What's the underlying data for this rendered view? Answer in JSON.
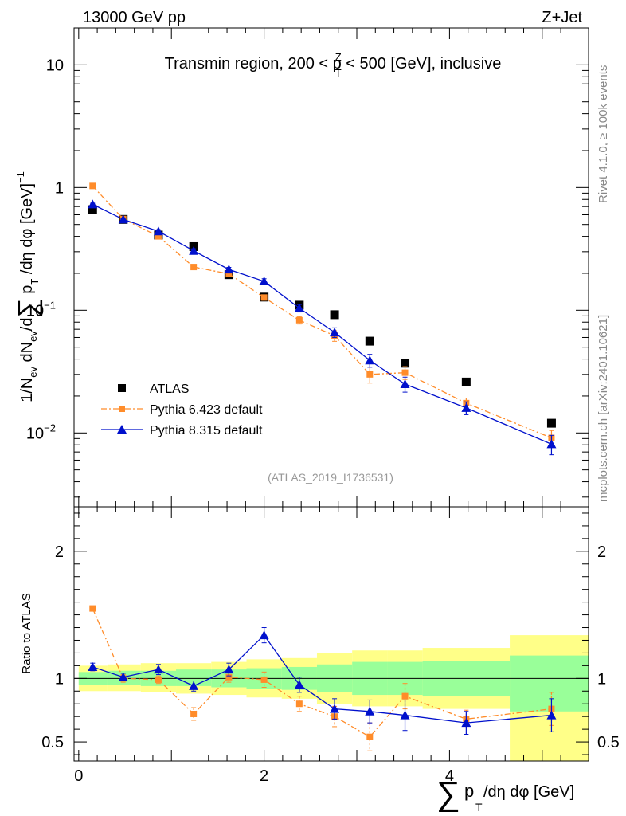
{
  "header": {
    "left": "13000 GeV pp",
    "right": "Z+Jet"
  },
  "side_labels": {
    "rivet": "Rivet 4.1.0, ≥ 100k events",
    "mcplots": "mcplots.cern.ch [arXiv:2401.10621]"
  },
  "colors": {
    "atlas": "#000000",
    "pythia6": "#ff8c2a",
    "pythia8": "#0010cc",
    "band_inner": "#99ff99",
    "band_outer": "#ffff88"
  },
  "chart_data": [
    {
      "type": "scatter",
      "title": "Transmin region, 200 < p_T^Z < 500 [GeV], inclusive",
      "title_parts": {
        "pre": "Transmin region, 200 < p",
        "sup": "Z",
        "sub": "T",
        "post": " < 500 [GeV], inclusive"
      },
      "ylabel": "1/N_ev dN_ev/dΣ p_T /dη dφ [GeV]^-1",
      "yscale": "log",
      "ylim": [
        0.0025,
        20
      ],
      "xlim": [
        -0.05,
        5.5
      ],
      "y_ticks": [
        {
          "value": 0.01,
          "label": "10",
          "exp": "−2"
        },
        {
          "value": 0.1,
          "label": "10",
          "exp": "−1"
        },
        {
          "value": 1,
          "label": "1",
          "exp": ""
        },
        {
          "value": 10,
          "label": "10",
          "exp": ""
        }
      ],
      "x": [
        0.15,
        0.48,
        0.86,
        1.24,
        1.62,
        2.0,
        2.38,
        2.76,
        3.14,
        3.52,
        4.18,
        5.1
      ],
      "series": [
        {
          "name": "ATLAS",
          "marker": "square",
          "values": [
            0.66,
            0.55,
            0.41,
            0.33,
            0.195,
            0.128,
            0.11,
            0.092,
            0.056,
            0.037,
            0.026,
            0.012
          ]
        },
        {
          "name": "Pythia 6.423 default",
          "marker": "square-small",
          "line": "dashdot",
          "values": [
            1.03,
            0.555,
            0.4,
            0.225,
            0.198,
            0.127,
            0.083,
            0.062,
            0.03,
            0.031,
            0.0175,
            0.0091
          ],
          "rel_err": [
            0.02,
            0.02,
            0.03,
            0.04,
            0.04,
            0.05,
            0.07,
            0.1,
            0.15,
            0.12,
            0.1,
            0.15
          ]
        },
        {
          "name": "Pythia 8.315 default",
          "marker": "triangle",
          "line": "solid",
          "values": [
            0.73,
            0.55,
            0.44,
            0.305,
            0.215,
            0.172,
            0.104,
            0.066,
            0.039,
            0.025,
            0.016,
            0.0081
          ],
          "rel_err": [
            0.02,
            0.02,
            0.03,
            0.04,
            0.04,
            0.05,
            0.07,
            0.09,
            0.12,
            0.14,
            0.12,
            0.18
          ]
        }
      ],
      "legend": {
        "placement": "lower-left"
      },
      "watermark": "(ATLAS_2019_I1736531)"
    },
    {
      "type": "scatter",
      "ylabel": "Ratio to ATLAS",
      "xlabel": "Σ p_T /dη dφ [GeV]",
      "xlabel_parts": {
        "sigma": "∑",
        "p": "p",
        "sub": "T",
        "post": " /dη dφ [GeV]"
      },
      "ylim": [
        0.35,
        2.35
      ],
      "xlim": [
        -0.05,
        5.5
      ],
      "x_ticks": [
        {
          "value": 0,
          "label": "0"
        },
        {
          "value": 2,
          "label": "2"
        },
        {
          "value": 4,
          "label": "4"
        }
      ],
      "y_ticks": [
        {
          "value": 0.5,
          "label": "0.5"
        },
        {
          "value": 1,
          "label": "1"
        },
        {
          "value": 2,
          "label": "2"
        }
      ],
      "x": [
        0.15,
        0.48,
        0.86,
        1.24,
        1.62,
        2.0,
        2.38,
        2.76,
        3.14,
        3.52,
        4.18,
        5.1
      ],
      "bin_edges": [
        0,
        0.31,
        0.67,
        1.05,
        1.43,
        1.81,
        2.19,
        2.57,
        2.95,
        3.33,
        3.71,
        4.65,
        5.5
      ],
      "band_inner": [
        [
          0.95,
          1.05
        ],
        [
          0.95,
          1.06
        ],
        [
          0.94,
          1.06
        ],
        [
          0.94,
          1.07
        ],
        [
          0.93,
          1.07
        ],
        [
          0.92,
          1.08
        ],
        [
          0.91,
          1.09
        ],
        [
          0.89,
          1.11
        ],
        [
          0.87,
          1.13
        ],
        [
          0.87,
          1.13
        ],
        [
          0.86,
          1.14
        ],
        [
          0.74,
          1.18
        ]
      ],
      "band_outer": [
        [
          0.9,
          1.1
        ],
        [
          0.9,
          1.11
        ],
        [
          0.89,
          1.12
        ],
        [
          0.88,
          1.12
        ],
        [
          0.87,
          1.13
        ],
        [
          0.85,
          1.15
        ],
        [
          0.84,
          1.16
        ],
        [
          0.8,
          1.2
        ],
        [
          0.78,
          1.22
        ],
        [
          0.78,
          1.22
        ],
        [
          0.76,
          1.24
        ],
        [
          0.35,
          1.34
        ]
      ],
      "series": [
        {
          "name": "Pythia 6.423 default",
          "values": [
            1.55,
            1.0,
            0.99,
            0.72,
            1.01,
            0.99,
            0.8,
            0.7,
            0.54,
            0.86,
            0.68,
            0.76
          ],
          "err": [
            0.02,
            0.03,
            0.03,
            0.05,
            0.04,
            0.06,
            0.06,
            0.08,
            0.11,
            0.1,
            0.07,
            0.13
          ]
        },
        {
          "name": "Pythia 8.315 default",
          "values": [
            1.09,
            1.01,
            1.07,
            0.94,
            1.07,
            1.34,
            0.95,
            0.76,
            0.74,
            0.71,
            0.65,
            0.71
          ],
          "err": [
            0.03,
            0.03,
            0.04,
            0.04,
            0.05,
            0.06,
            0.06,
            0.08,
            0.09,
            0.12,
            0.09,
            0.13
          ]
        }
      ],
      "reference_line": 1
    }
  ]
}
